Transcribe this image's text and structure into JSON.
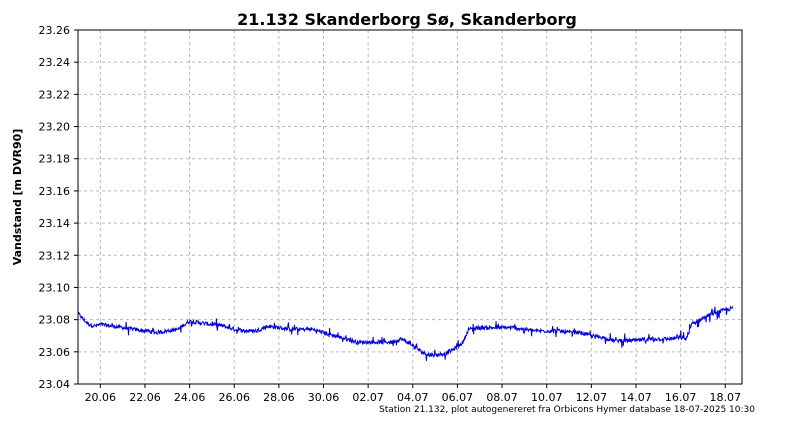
{
  "chart_data": {
    "type": "line",
    "title": "21.132 Skanderborg Sø, Skanderborg",
    "ylabel": "Vandstand [m DVR90]",
    "xlabel": "",
    "footer": "Station 21.132, plot autogenereret fra Orbicons Hymer database 18-07-2025 10:30",
    "ylim": [
      23.04,
      23.26
    ],
    "yticks": [
      "23.04",
      "23.06",
      "23.08",
      "23.10",
      "23.12",
      "23.14",
      "23.16",
      "23.18",
      "23.20",
      "23.22",
      "23.24",
      "23.26"
    ],
    "xlim": [
      "2025-06-19 00:00",
      "2025-07-18 18:00"
    ],
    "xticks": [
      {
        "label": "20.06",
        "date": "2025-06-20"
      },
      {
        "label": "22.06",
        "date": "2025-06-22"
      },
      {
        "label": "24.06",
        "date": "2025-06-24"
      },
      {
        "label": "26.06",
        "date": "2025-06-26"
      },
      {
        "label": "28.06",
        "date": "2025-06-28"
      },
      {
        "label": "30.06",
        "date": "2025-06-30"
      },
      {
        "label": "02.07",
        "date": "2025-07-02"
      },
      {
        "label": "04.07",
        "date": "2025-07-04"
      },
      {
        "label": "06.07",
        "date": "2025-07-06"
      },
      {
        "label": "08.07",
        "date": "2025-07-08"
      },
      {
        "label": "10.07",
        "date": "2025-07-10"
      },
      {
        "label": "12.07",
        "date": "2025-07-12"
      },
      {
        "label": "14.07",
        "date": "2025-07-14"
      },
      {
        "label": "16.07",
        "date": "2025-07-16"
      },
      {
        "label": "18.07",
        "date": "2025-07-18"
      }
    ],
    "grid": true,
    "line_color": "#0000dd",
    "series": [
      {
        "x": [
          "2025-06-19 00:00",
          "2025-06-19 06:00",
          "2025-06-19 12:00",
          "2025-06-19 18:00",
          "2025-06-20 00:00",
          "2025-06-20 12:00",
          "2025-06-21 00:00",
          "2025-06-21 12:00",
          "2025-06-22 00:00",
          "2025-06-22 12:00",
          "2025-06-23 00:00",
          "2025-06-23 12:00",
          "2025-06-23 18:00",
          "2025-06-24 00:00",
          "2025-06-24 12:00",
          "2025-06-25 00:00",
          "2025-06-25 12:00",
          "2025-06-26 00:00",
          "2025-06-26 12:00",
          "2025-06-27 00:00",
          "2025-06-27 12:00",
          "2025-06-28 00:00",
          "2025-06-28 12:00",
          "2025-06-29 00:00",
          "2025-06-29 12:00",
          "2025-06-30 00:00",
          "2025-06-30 12:00",
          "2025-07-01 00:00",
          "2025-07-01 12:00",
          "2025-07-02 00:00",
          "2025-07-02 12:00",
          "2025-07-03 00:00",
          "2025-07-03 12:00",
          "2025-07-04 00:00",
          "2025-07-04 12:00",
          "2025-07-05 00:00",
          "2025-07-05 12:00",
          "2025-07-06 00:00",
          "2025-07-06 06:00",
          "2025-07-06 12:00",
          "2025-07-07 00:00",
          "2025-07-07 12:00",
          "2025-07-08 00:00",
          "2025-07-08 12:00",
          "2025-07-09 00:00",
          "2025-07-09 12:00",
          "2025-07-10 00:00",
          "2025-07-10 12:00",
          "2025-07-11 00:00",
          "2025-07-11 12:00",
          "2025-07-12 00:00",
          "2025-07-12 12:00",
          "2025-07-13 00:00",
          "2025-07-13 12:00",
          "2025-07-14 00:00",
          "2025-07-14 12:00",
          "2025-07-15 00:00",
          "2025-07-15 12:00",
          "2025-07-16 00:00",
          "2025-07-16 06:00",
          "2025-07-16 12:00",
          "2025-07-17 00:00",
          "2025-07-17 12:00",
          "2025-07-18 00:00",
          "2025-07-18 08:00"
        ],
        "values": [
          23.084,
          23.08,
          23.077,
          23.076,
          23.077,
          23.076,
          23.075,
          23.074,
          23.073,
          23.072,
          23.073,
          23.074,
          23.077,
          23.079,
          23.078,
          23.077,
          23.076,
          23.074,
          23.073,
          23.073,
          23.076,
          23.075,
          23.074,
          23.074,
          23.074,
          23.072,
          23.07,
          23.068,
          23.066,
          23.066,
          23.066,
          23.066,
          23.068,
          23.064,
          23.059,
          23.058,
          23.059,
          23.063,
          23.066,
          23.074,
          23.075,
          23.075,
          23.075,
          23.075,
          23.074,
          23.073,
          23.073,
          23.073,
          23.072,
          23.072,
          23.07,
          23.069,
          23.067,
          23.067,
          23.067,
          23.068,
          23.068,
          23.068,
          23.069,
          23.068,
          23.077,
          23.081,
          23.084,
          23.086,
          23.087
        ]
      }
    ]
  }
}
